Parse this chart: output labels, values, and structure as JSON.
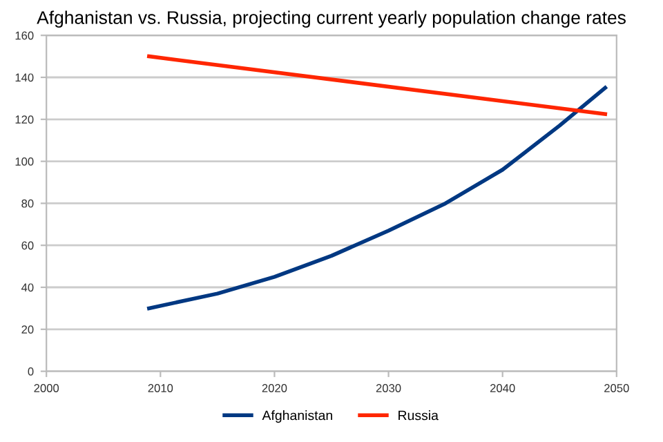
{
  "chart_data": {
    "type": "line",
    "title": "Afghanistan vs. Russia, projecting current yearly population change rates",
    "series": [
      {
        "name": "Afghanistan",
        "color": "#003882",
        "x": [
          2009,
          2015,
          2020,
          2025,
          2030,
          2035,
          2040,
          2045,
          2049
        ],
        "values": [
          30,
          37,
          45,
          55,
          67,
          80,
          96,
          117,
          135
        ]
      },
      {
        "name": "Russia",
        "color": "#ff2600",
        "x": [
          2009,
          2049
        ],
        "values": [
          150,
          122.5
        ]
      }
    ],
    "xlim": [
      2000,
      2050
    ],
    "xticks": [
      2000,
      2010,
      2020,
      2030,
      2040,
      2050
    ],
    "ylim": [
      0,
      160
    ],
    "yticks": [
      0,
      20,
      40,
      60,
      80,
      100,
      120,
      140,
      160
    ],
    "grid": "y",
    "legend": "bottom",
    "marker": "none",
    "line_style": "solid"
  }
}
